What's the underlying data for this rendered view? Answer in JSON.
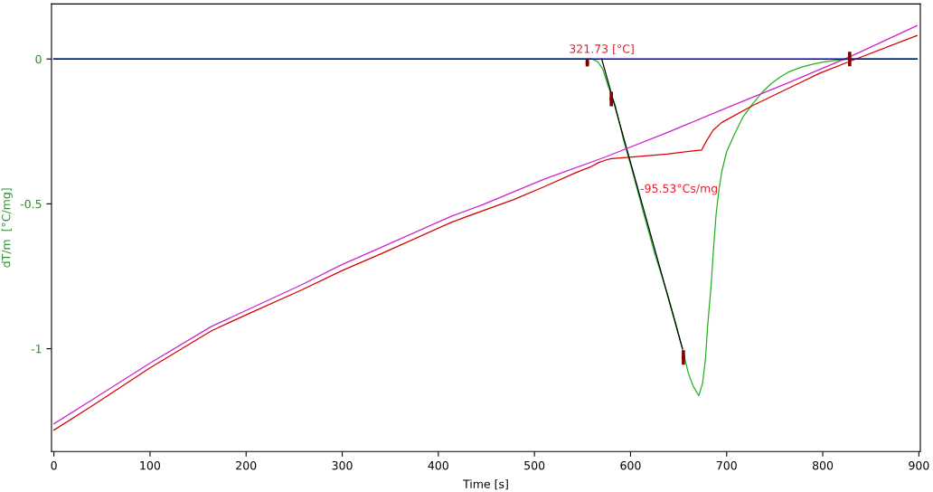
{
  "chart_data": {
    "type": "line",
    "xlabel": "Time [s]",
    "ylabel": "dT/m  [°C/mg]",
    "xlim": [
      -2.5,
      901.5
    ],
    "ylim": [
      -1.355,
      0.19
    ],
    "xticks": [
      0,
      100,
      200,
      300,
      400,
      500,
      600,
      700,
      800,
      900
    ],
    "yticks": [
      0,
      -0.5,
      -1
    ],
    "series": [
      {
        "color": "#22b022",
        "x": [
          0,
          560,
          566,
          571,
          577,
          584,
          593,
          602,
          612,
          625,
          638,
          646,
          654,
          660,
          665,
          671,
          675,
          678,
          680,
          684,
          686,
          689,
          692,
          695,
          700,
          708,
          717,
          727,
          737,
          746,
          756,
          765,
          778,
          791,
          803,
          813,
          822,
          830,
          898
        ],
        "values": [
          0,
          0,
          -0.01,
          -0.034,
          -0.097,
          -0.159,
          -0.284,
          -0.388,
          -0.513,
          -0.67,
          -0.807,
          -0.9,
          -1.0,
          -1.083,
          -1.128,
          -1.162,
          -1.118,
          -1.034,
          -0.93,
          -0.776,
          -0.67,
          -0.537,
          -0.45,
          -0.388,
          -0.32,
          -0.261,
          -0.2,
          -0.155,
          -0.115,
          -0.086,
          -0.062,
          -0.044,
          -0.028,
          -0.017,
          -0.009,
          -0.005,
          -0.002,
          0,
          0
        ]
      },
      {
        "color": "#0000c8",
        "x": [
          0,
          898
        ],
        "values": [
          0,
          0
        ]
      },
      {
        "color": "#000000",
        "x": [
          570,
          654
        ],
        "values": [
          0,
          -1.0
        ]
      },
      {
        "color": "#d40000",
        "x": [
          0,
          38,
          100,
          164,
          200,
          258,
          300,
          342,
          414,
          446,
          478,
          510,
          542,
          558,
          567,
          574,
          580,
          593,
          638,
          674,
          679,
          686,
          695,
          727,
          765,
          797,
          829,
          898
        ],
        "values": [
          -1.281,
          -1.201,
          -1.066,
          -0.938,
          -0.883,
          -0.797,
          -0.73,
          -0.67,
          -0.563,
          -0.524,
          -0.486,
          -0.441,
          -0.394,
          -0.373,
          -0.357,
          -0.349,
          -0.344,
          -0.341,
          -0.328,
          -0.314,
          -0.283,
          -0.245,
          -0.219,
          -0.161,
          -0.1,
          -0.049,
          -0.007,
          0.081
        ]
      },
      {
        "color": "#cc22cc",
        "x": [
          0,
          38,
          100,
          164,
          200,
          258,
          300,
          327,
          414,
          446,
          510,
          574,
          638,
          702,
          765,
          829,
          898
        ],
        "values": [
          -1.259,
          -1.18,
          -1.05,
          -0.923,
          -0.868,
          -0.779,
          -0.709,
          -0.67,
          -0.542,
          -0.503,
          -0.415,
          -0.338,
          -0.254,
          -0.166,
          -0.081,
          0.009,
          0.115
        ]
      },
      {
        "type": "scatter",
        "marker": "square",
        "color": "#800000",
        "x": [
          555,
          580,
          655,
          828
        ],
        "values": [
          -0.013,
          -0.138,
          -1.03,
          0
        ],
        "errors": [
          0.013,
          0.025,
          0.025,
          0.025
        ]
      }
    ],
    "annotations": [
      {
        "text": "321.73 [°C]",
        "x": 570,
        "y": 0
      },
      {
        "text": "-95.53°Cs/mg",
        "x": 610,
        "y": -0.45
      }
    ]
  }
}
